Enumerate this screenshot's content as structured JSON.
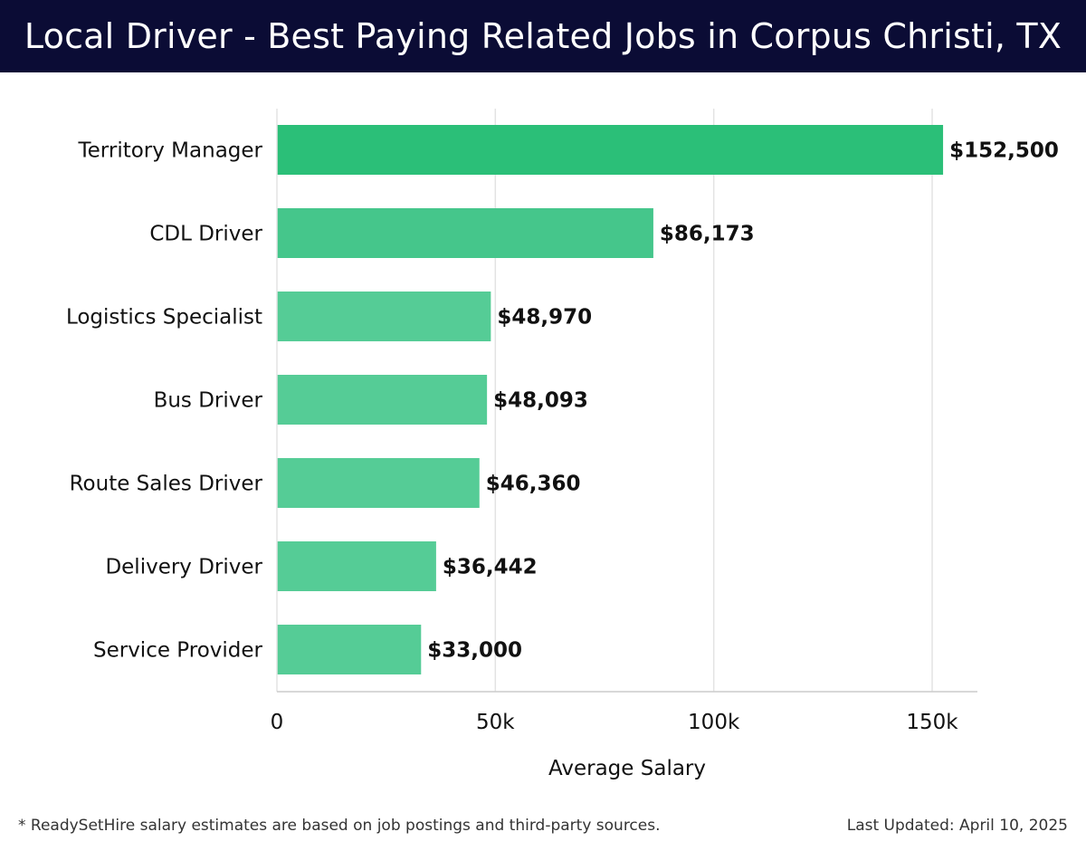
{
  "header": {
    "title": "Local Driver - Best Paying Related Jobs in Corpus Christi, TX",
    "background": "#0b0c35"
  },
  "chart_data": {
    "type": "bar",
    "orientation": "horizontal",
    "title": "Local Driver - Best Paying Related Jobs in Corpus Christi, TX",
    "xlabel": "Average Salary",
    "ylabel": "",
    "xlim": [
      0,
      160000
    ],
    "xticks": [
      0,
      50000,
      100000,
      150000
    ],
    "xtick_labels": [
      "0",
      "50k",
      "100k",
      "150k"
    ],
    "grid": true,
    "categories": [
      "Territory Manager",
      "CDL Driver",
      "Logistics Specialist",
      "Bus Driver",
      "Route Sales Driver",
      "Delivery Driver",
      "Service Provider"
    ],
    "values": [
      152500,
      86173,
      48970,
      48093,
      46360,
      36442,
      33000
    ],
    "value_labels": [
      "$152,500",
      "$86,173",
      "$48,970",
      "$48,093",
      "$46,360",
      "$36,442",
      "$33,000"
    ],
    "colors": {
      "top_bar": "#2bbf78",
      "bars": "#55cc96",
      "bar_second": "#45c68b",
      "grid": "#e3e3e3",
      "axis": "#cccccc"
    }
  },
  "footer": {
    "note": "* ReadySetHire salary estimates are based on job postings and third-party sources.",
    "updated": "Last Updated: April 10, 2025"
  }
}
